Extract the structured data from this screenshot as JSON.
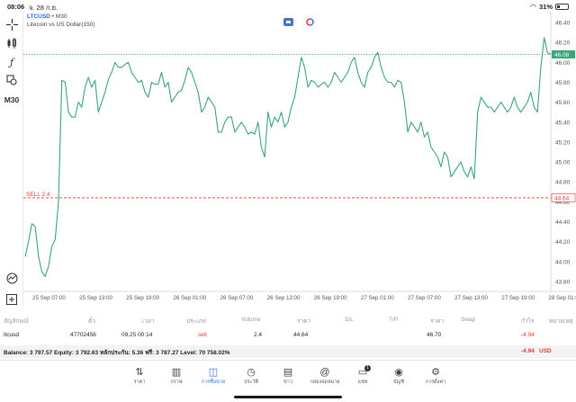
{
  "status_bar": {
    "time": "08:06",
    "date": "จ. 28 ก.ย.",
    "battery": "31%"
  },
  "toolbar": {
    "timeframe": "M30",
    "tools": [
      "crosshair-icon",
      "candles-icon",
      "function-icon",
      "objects-icon"
    ],
    "bottom_tools": [
      "history-icon",
      "add-icon"
    ]
  },
  "chart": {
    "symbol": "LTCUSD",
    "timeframe_suffix": "• M30",
    "description": "Litecoin vs US Dollar(150)",
    "current_price_label": "46.08",
    "sell_label": "SELL 2.4",
    "sell_price_label": "44.64"
  },
  "chart_data": {
    "type": "line",
    "ylim": [
      43.7,
      46.5
    ],
    "y_ticks": [
      "46.40",
      "46.20",
      "46.00",
      "45.80",
      "45.60",
      "45.40",
      "45.20",
      "45.00",
      "44.80",
      "44.60",
      "44.40",
      "44.20",
      "44.00",
      "43.80"
    ],
    "x_ticks": [
      "25 Sep 07:00",
      "25 Sep 13:00",
      "25 Sep 19:00",
      "26 Sep 01:00",
      "26 Sep 07:00",
      "26 Sep 13:00",
      "26 Sep 19:00",
      "27 Sep 01:00",
      "27 Sep 07:00",
      "27 Sep 13:00",
      "27 Sep 19:00",
      "28 Sep 01:00"
    ],
    "series": [
      {
        "color": "#3aa57a",
        "values": [
          44.05,
          44.2,
          44.38,
          44.35,
          44.05,
          43.9,
          43.85,
          43.95,
          44.15,
          44.22,
          44.6,
          45.82,
          45.8,
          45.5,
          45.45,
          45.45,
          45.6,
          45.55,
          45.75,
          45.85,
          45.75,
          45.82,
          45.5,
          45.6,
          45.7,
          45.83,
          45.9,
          46.0,
          45.95,
          45.95,
          45.98,
          46.0,
          45.9,
          45.85,
          45.8,
          45.82,
          45.7,
          45.65,
          45.8,
          45.78,
          45.78,
          45.9,
          45.75,
          45.8,
          45.6,
          45.65,
          45.7,
          45.72,
          45.82,
          45.95,
          45.9,
          45.8,
          45.7,
          45.5,
          45.55,
          45.65,
          45.6,
          45.55,
          45.3,
          45.3,
          45.4,
          45.45,
          45.45,
          45.3,
          45.35,
          45.4,
          45.35,
          45.28,
          45.3,
          45.28,
          45.4,
          45.15,
          45.05,
          45.5,
          45.35,
          45.45,
          45.4,
          45.5,
          45.35,
          45.4,
          45.55,
          45.65,
          45.85,
          46.05,
          45.95,
          45.75,
          45.82,
          45.8,
          45.75,
          45.78,
          45.8,
          45.75,
          45.8,
          45.9,
          45.85,
          45.8,
          45.85,
          45.9,
          46.0,
          46.05,
          45.9,
          45.8,
          45.75,
          45.9,
          45.95,
          46.05,
          46.1,
          45.95,
          45.85,
          45.8,
          45.8,
          45.75,
          45.82,
          45.8,
          45.6,
          45.3,
          45.4,
          45.35,
          45.3,
          45.4,
          45.25,
          45.3,
          45.15,
          45.1,
          45.05,
          44.95,
          45.1,
          45.05,
          44.85,
          44.9,
          44.95,
          45.0,
          44.9,
          44.85,
          44.95,
          44.83,
          45.5,
          45.65,
          45.6,
          45.55,
          45.55,
          45.5,
          45.55,
          45.6,
          45.55,
          45.5,
          45.55,
          45.65,
          45.55,
          45.5,
          45.55,
          45.6,
          45.7,
          45.55,
          45.5,
          45.95,
          46.25,
          46.1,
          46.08
        ]
      }
    ],
    "hlines": [
      {
        "value": 46.08,
        "color": "#3aa57a",
        "style": "dotted"
      },
      {
        "value": 44.64,
        "color": "#e53935",
        "style": "dashed"
      }
    ]
  },
  "positions": {
    "headers": [
      "สัญลักษณ์",
      "ตั๋ว",
      "เวลา",
      "ประเภท",
      "Volume",
      "ราคา",
      "S/L",
      "T/P",
      "ราคา",
      "Swap",
      "กำไร",
      "หมายเหตุ"
    ],
    "rows": [
      {
        "symbol": "ltcusd",
        "ticket": "47702456",
        "time": "09.25 00:14",
        "type": "sell",
        "volume": "2.4",
        "open_price": "44.64",
        "sl": "",
        "tp": "",
        "price": "46.70",
        "swap": "",
        "profit": "-4.94",
        "comment": ""
      }
    ]
  },
  "balance": {
    "text": "Balance: 3 797.57 Equity: 3 792.63 หลักประกัน: 5.36 ฟรี: 3 787.27 Level: 70 758.02%",
    "profit": "-4.94",
    "currency": "USD"
  },
  "tabs": [
    {
      "label": "ราคา",
      "icon": "arrows-updown-icon"
    },
    {
      "label": "กราฟ",
      "icon": "candles-icon"
    },
    {
      "label": "การซื้อขาย",
      "icon": "trade-chart-icon",
      "active": true
    },
    {
      "label": "ประวัติ",
      "icon": "history-icon"
    },
    {
      "label": "ข่าว",
      "icon": "news-icon"
    },
    {
      "label": "กล่องจดหมาย",
      "icon": "mailbox-icon"
    },
    {
      "label": "แชท",
      "icon": "chat-icon",
      "badge": "1"
    },
    {
      "label": "บัญชี",
      "icon": "account-icon"
    },
    {
      "label": "การตั้งค่า",
      "icon": "settings-icon"
    }
  ]
}
